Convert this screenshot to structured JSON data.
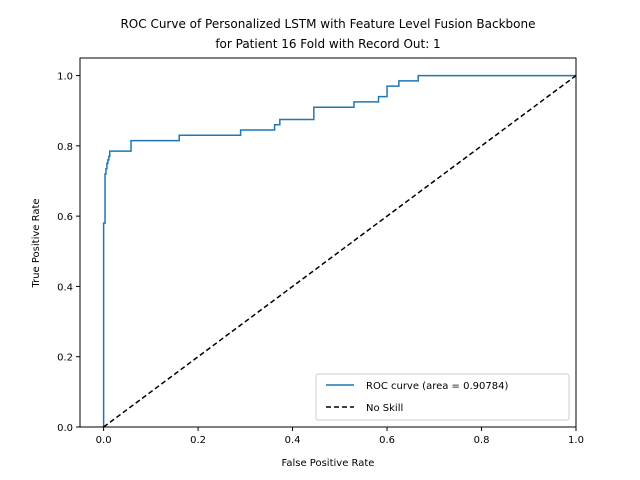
{
  "chart_data": {
    "type": "line",
    "title_line1": "ROC Curve of Personalized LSTM with Feature Level Fusion Backbone",
    "title_line2": "for Patient 16 Fold with Record Out: 1",
    "xlabel": "False Positive Rate",
    "ylabel": "True Positive Rate",
    "xlim": [
      -0.05,
      1.0
    ],
    "ylim": [
      0.0,
      1.05
    ],
    "xticks": [
      0.0,
      0.2,
      0.4,
      0.6,
      0.8,
      1.0
    ],
    "yticks": [
      0.0,
      0.2,
      0.4,
      0.6,
      0.8,
      1.0
    ],
    "xtick_labels": [
      "0.0",
      "0.2",
      "0.4",
      "0.6",
      "0.8",
      "1.0"
    ],
    "ytick_labels": [
      "0.0",
      "0.2",
      "0.4",
      "0.6",
      "0.8",
      "1.0"
    ],
    "grid": false,
    "legend_position": "lower-right",
    "series": [
      {
        "name": "ROC curve (area = 0.90784)",
        "color": "#1f77b4",
        "style": "solid",
        "step": true,
        "x": [
          0.0,
          0.0,
          0.003,
          0.003,
          0.005,
          0.005,
          0.007,
          0.007,
          0.009,
          0.009,
          0.011,
          0.011,
          0.013,
          0.013,
          0.058,
          0.058,
          0.16,
          0.16,
          0.29,
          0.29,
          0.362,
          0.362,
          0.373,
          0.373,
          0.445,
          0.445,
          0.53,
          0.53,
          0.582,
          0.582,
          0.6,
          0.6,
          0.625,
          0.625,
          0.666,
          0.666,
          1.0
        ],
        "y": [
          0.0,
          0.58,
          0.58,
          0.72,
          0.72,
          0.735,
          0.735,
          0.75,
          0.75,
          0.76,
          0.76,
          0.77,
          0.77,
          0.785,
          0.785,
          0.815,
          0.815,
          0.83,
          0.83,
          0.845,
          0.845,
          0.86,
          0.86,
          0.875,
          0.875,
          0.91,
          0.91,
          0.925,
          0.925,
          0.94,
          0.94,
          0.97,
          0.97,
          0.985,
          0.985,
          1.0,
          1.0
        ]
      },
      {
        "name": "No Skill",
        "color": "#000000",
        "style": "dashed",
        "step": false,
        "x": [
          0.0,
          1.0
        ],
        "y": [
          0.0,
          1.0
        ]
      }
    ]
  }
}
